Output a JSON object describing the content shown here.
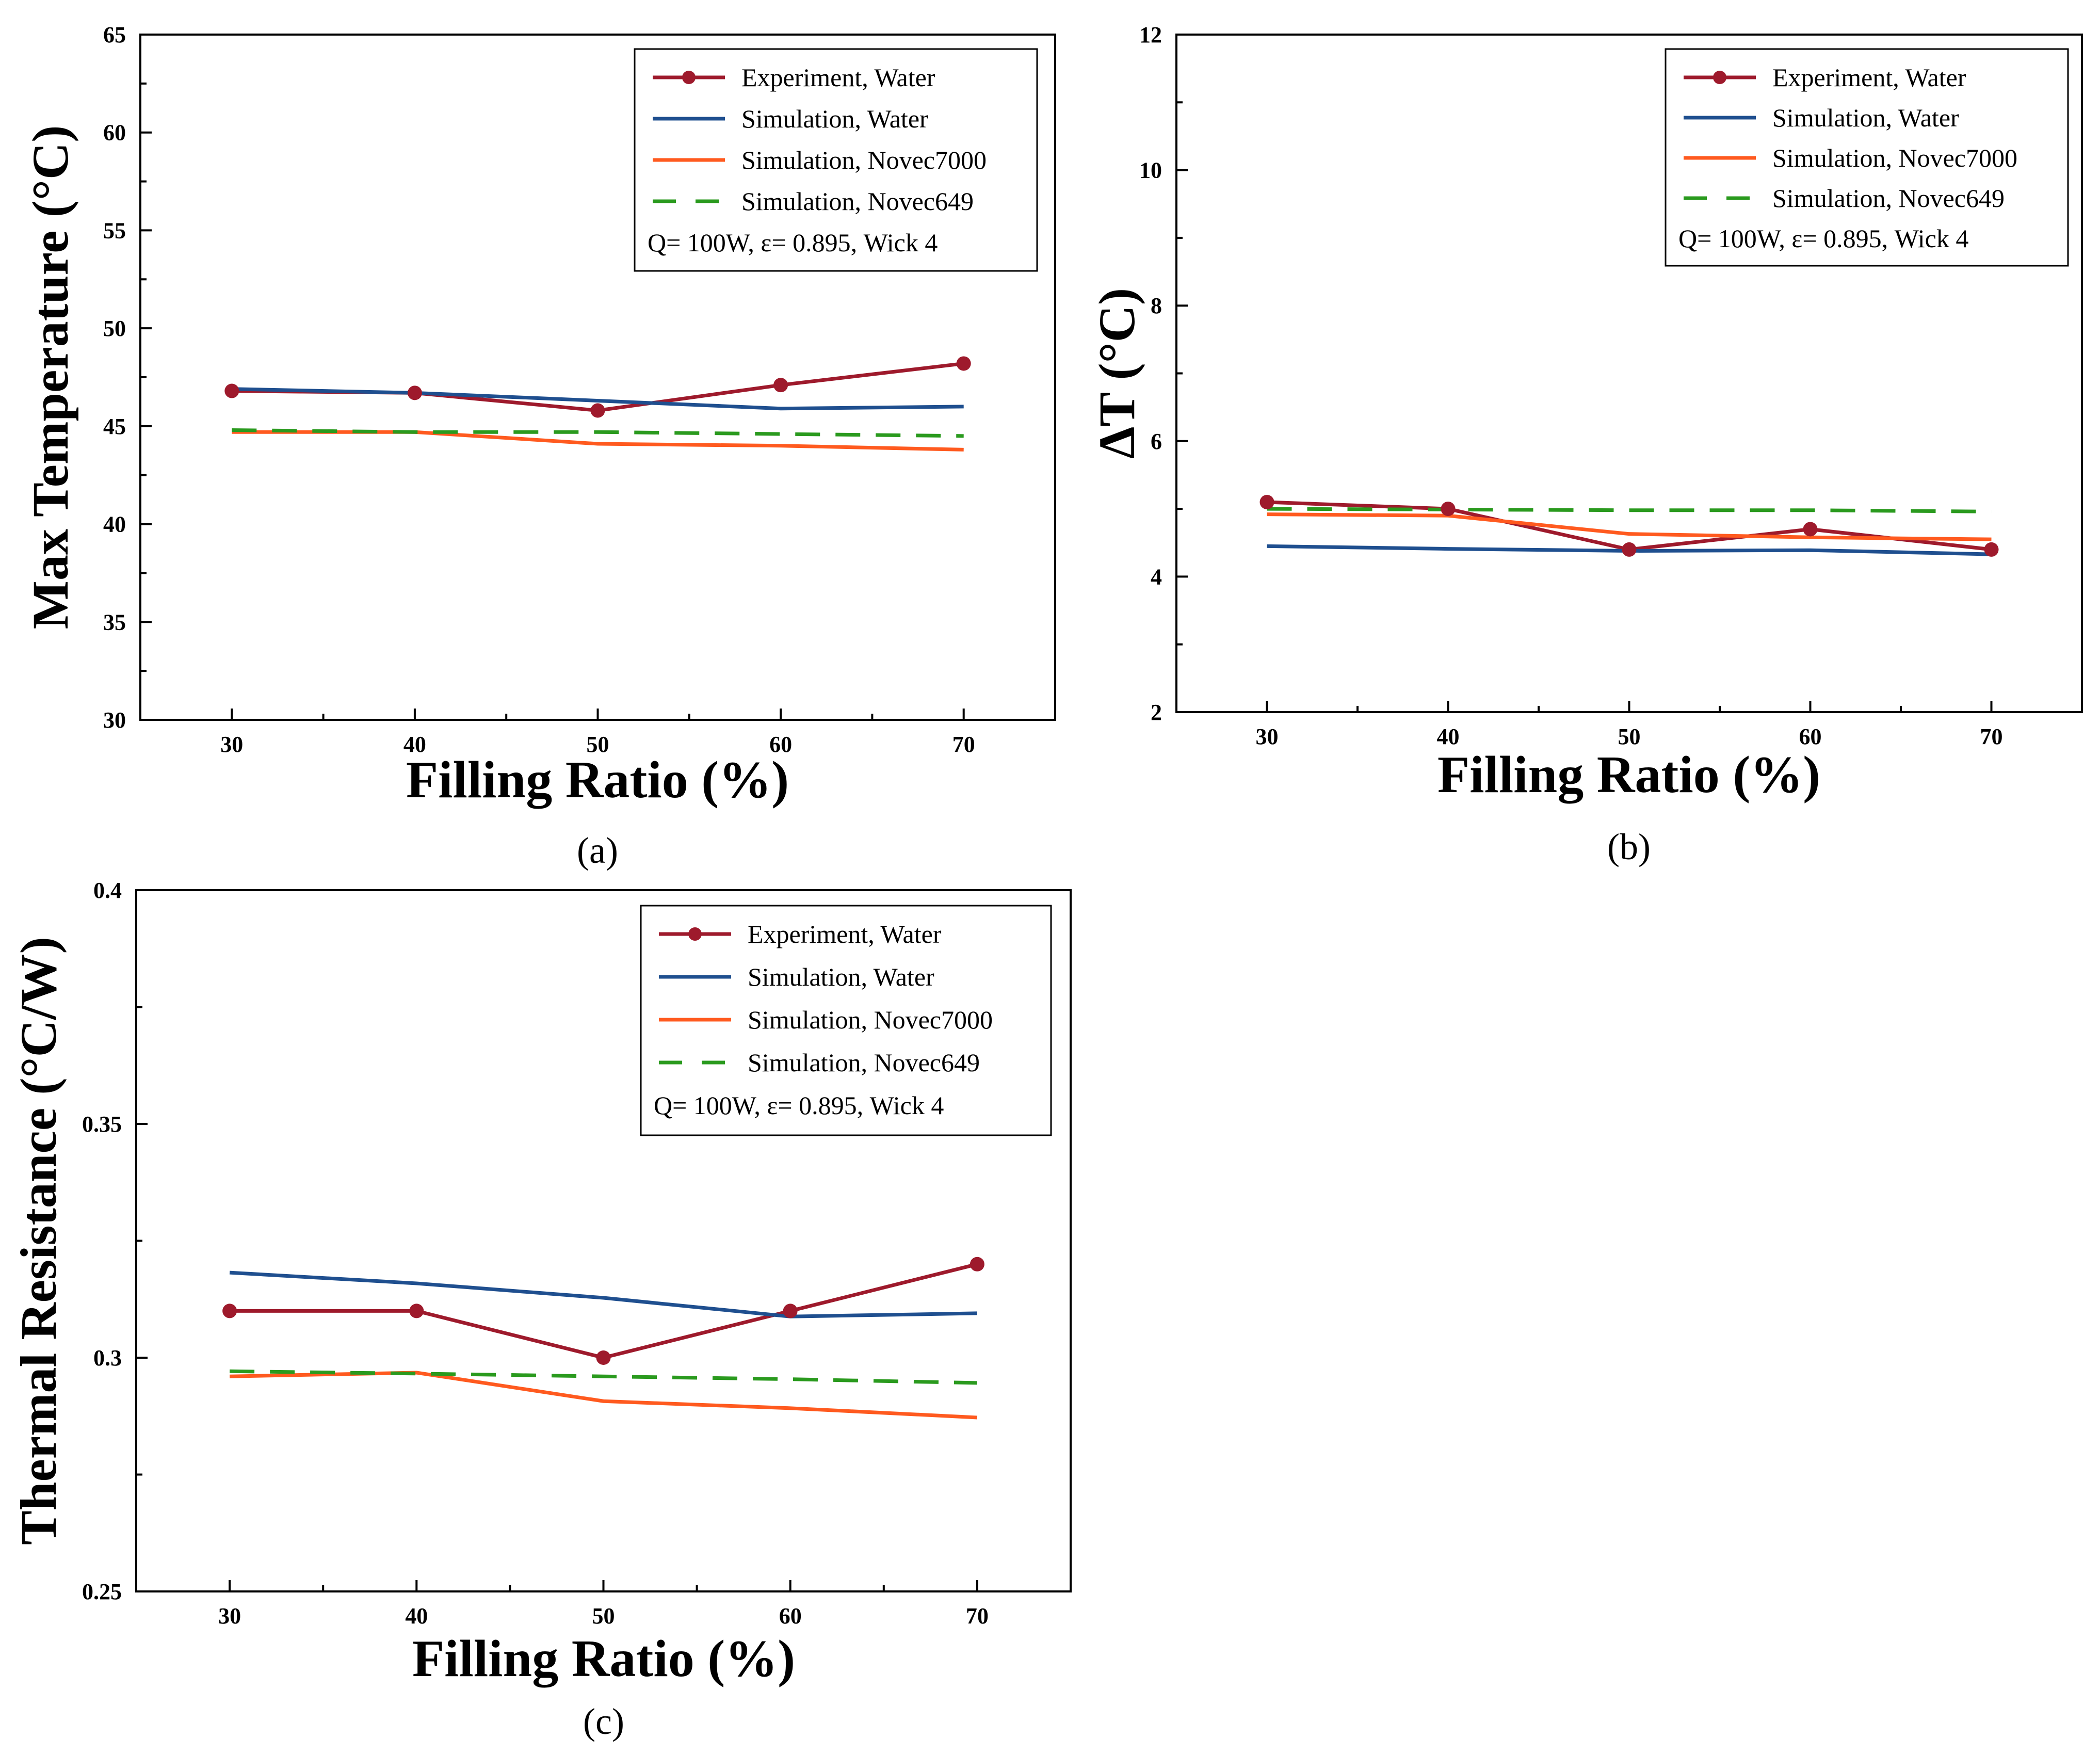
{
  "colors": {
    "experiment_water": "#9e1a2c",
    "simulation_water": "#1f4f8f",
    "simulation_novec7000": "#ff5a1f",
    "simulation_novec649": "#2a9a1e",
    "axis": "#000000"
  },
  "chart_data": [
    {
      "id": "a",
      "type": "line",
      "panel_label": "(a)",
      "xlabel": "Filling Ratio (%)",
      "ylabel": "Max Temperature (°C)",
      "xlim": [
        25,
        75
      ],
      "ylim": [
        30,
        65
      ],
      "x_ticks": [
        30,
        40,
        50,
        60,
        70
      ],
      "y_ticks": [
        30,
        35,
        40,
        45,
        50,
        55,
        60,
        65
      ],
      "legend_position": "top-right",
      "legend_note": "Q= 100W,  ε= 0.895, Wick 4",
      "series": [
        {
          "key": "experiment_water",
          "name": "Experiment, Water",
          "style": "line-marker",
          "x": [
            30,
            40,
            50,
            60,
            70
          ],
          "values": [
            46.8,
            46.7,
            45.8,
            47.1,
            48.2
          ]
        },
        {
          "key": "simulation_water",
          "name": "Simulation, Water",
          "style": "line",
          "x": [
            30,
            40,
            50,
            60,
            70
          ],
          "values": [
            46.9,
            46.7,
            46.3,
            45.9,
            46.0
          ]
        },
        {
          "key": "simulation_novec7000",
          "name": "Simulation, Novec7000",
          "style": "line",
          "x": [
            30,
            40,
            50,
            60,
            70
          ],
          "values": [
            44.7,
            44.7,
            44.1,
            44.0,
            43.8
          ]
        },
        {
          "key": "simulation_novec649",
          "name": "Simulation, Novec649",
          "style": "dashed",
          "x": [
            30,
            40,
            50,
            60,
            70
          ],
          "values": [
            44.8,
            44.7,
            44.7,
            44.6,
            44.5
          ]
        }
      ]
    },
    {
      "id": "b",
      "type": "line",
      "panel_label": "(b)",
      "xlabel": "Filling Ratio (%)",
      "ylabel": "ΔT (°C)",
      "xlim": [
        25,
        75
      ],
      "ylim": [
        2,
        12
      ],
      "x_ticks": [
        30,
        40,
        50,
        60,
        70
      ],
      "y_ticks": [
        2,
        4,
        6,
        8,
        10,
        12
      ],
      "legend_position": "top-right",
      "legend_note": "Q= 100W,  ε= 0.895, Wick 4",
      "series": [
        {
          "key": "experiment_water",
          "name": "Experiment, Water",
          "style": "line-marker",
          "x": [
            30,
            40,
            50,
            60,
            70
          ],
          "values": [
            5.1,
            5.0,
            4.4,
            4.7,
            4.4
          ]
        },
        {
          "key": "simulation_water",
          "name": "Simulation, Water",
          "style": "line",
          "x": [
            30,
            40,
            50,
            60,
            70
          ],
          "values": [
            4.45,
            4.41,
            4.38,
            4.39,
            4.33
          ]
        },
        {
          "key": "simulation_novec7000",
          "name": "Simulation, Novec7000",
          "style": "line",
          "x": [
            30,
            40,
            50,
            60,
            70
          ],
          "values": [
            4.92,
            4.9,
            4.63,
            4.58,
            4.55
          ]
        },
        {
          "key": "simulation_novec649",
          "name": "Simulation, Novec649",
          "style": "dashed",
          "x": [
            30,
            40,
            50,
            60,
            70
          ],
          "values": [
            5.0,
            4.99,
            4.98,
            4.98,
            4.96
          ]
        }
      ]
    },
    {
      "id": "c",
      "type": "line",
      "panel_label": "(c)",
      "xlabel": "Filling Ratio (%)",
      "ylabel": "Thermal Resistance (°C/W)",
      "xlim": [
        25,
        75
      ],
      "ylim": [
        0.25,
        0.4
      ],
      "x_ticks": [
        30,
        40,
        50,
        60,
        70
      ],
      "y_ticks": [
        0.25,
        0.3,
        0.35,
        0.4
      ],
      "y_tick_labels": [
        "0.25",
        "0.3",
        "0.35",
        "0.4"
      ],
      "legend_position": "top-right",
      "legend_note": "Q= 100W,  ε= 0.895, Wick 4",
      "series": [
        {
          "key": "experiment_water",
          "name": "Experiment, Water",
          "style": "line-marker",
          "x": [
            30,
            40,
            50,
            60,
            70
          ],
          "values": [
            0.31,
            0.31,
            0.3,
            0.31,
            0.32
          ]
        },
        {
          "key": "simulation_water",
          "name": "Simulation, Water",
          "style": "line",
          "x": [
            30,
            40,
            50,
            60,
            70
          ],
          "values": [
            0.3182,
            0.3159,
            0.3128,
            0.3088,
            0.3095
          ]
        },
        {
          "key": "simulation_novec7000",
          "name": "Simulation, Novec7000",
          "style": "line",
          "x": [
            30,
            40,
            50,
            60,
            70
          ],
          "values": [
            0.296,
            0.2968,
            0.2907,
            0.2892,
            0.2872
          ]
        },
        {
          "key": "simulation_novec649",
          "name": "Simulation, Novec649",
          "style": "dashed",
          "x": [
            30,
            40,
            50,
            60,
            70
          ],
          "values": [
            0.2971,
            0.2966,
            0.296,
            0.2954,
            0.2946
          ]
        }
      ]
    }
  ]
}
